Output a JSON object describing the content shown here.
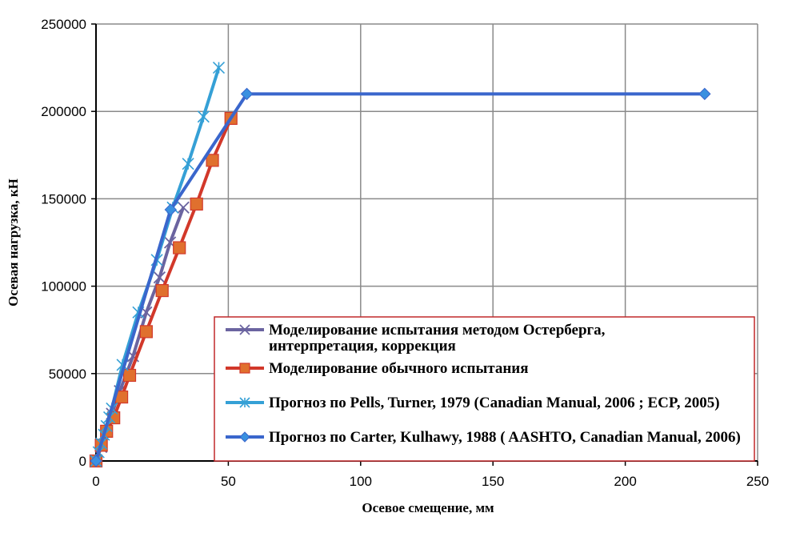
{
  "chart_data": {
    "type": "line",
    "title": "",
    "xlabel": "Осевое смещение, мм",
    "ylabel": "Осевая нагрузка, кН",
    "xlim": [
      0,
      250
    ],
    "ylim": [
      0,
      250000
    ],
    "xticks": [
      0,
      50,
      100,
      150,
      200,
      250
    ],
    "yticks": [
      0,
      50000,
      100000,
      150000,
      200000,
      250000
    ],
    "grid": true,
    "legend_placement": "bottom-right",
    "series": [
      {
        "name": "Моделирование испытания методом Остерберга, интерпретация, коррекция",
        "label_lines": [
          "Моделирование испытания методом Остерберга,",
          "интерпретация, коррекция"
        ],
        "color": "#6b64a0",
        "marker": "x",
        "x": [
          0,
          2,
          4,
          6,
          9,
          14,
          19,
          24,
          28,
          33
        ],
        "y": [
          0,
          8000,
          17000,
          27000,
          40000,
          60000,
          85000,
          105000,
          125000,
          145000
        ]
      },
      {
        "name": "Моделирование обычного испытания",
        "label_lines": [
          "Моделирование обычного испытания"
        ],
        "color": "#d2382a",
        "marker_color": "#e0702e",
        "marker": "square",
        "x": [
          0,
          2,
          4,
          6.7,
          9.7,
          12.7,
          19,
          25,
          31.5,
          38,
          44,
          51
        ],
        "y": [
          0,
          9000,
          17000,
          24700,
          36600,
          49000,
          74000,
          97500,
          122000,
          147000,
          172000,
          196000
        ]
      },
      {
        "name": "Прогноз по Pells, Turner, 1979  (Canadian Manual, 2006 ; ECP, 2005)",
        "label_lines": [
          "Прогноз по Pells, Turner, 1979  (Canadian Manual, 2006 ; ECP, 2005)"
        ],
        "color": "#35a0d6",
        "marker": "star",
        "x": [
          0,
          1,
          2,
          3,
          4,
          5,
          6,
          10,
          16,
          23,
          29,
          34.8,
          40.6,
          46.4
        ],
        "y": [
          0,
          5000,
          10000,
          15000,
          20000,
          25000,
          30000,
          55000,
          85000,
          115000,
          145000,
          170000,
          197000,
          225000
        ]
      },
      {
        "name": "Прогноз по Carter, Kulhawy, 1988 ( AASHTO, Canadian Manual, 2006)",
        "label_lines": [
          "Прогноз по Carter, Kulhawy, 1988 ( AASHTO, Canadian Manual, 2006)"
        ],
        "color": "#3a66cc",
        "marker_color": "#3a90e0",
        "marker": "diamond",
        "x": [
          0,
          28.2,
          57,
          230
        ],
        "y": [
          0,
          143800,
          210000,
          210000
        ]
      }
    ]
  }
}
